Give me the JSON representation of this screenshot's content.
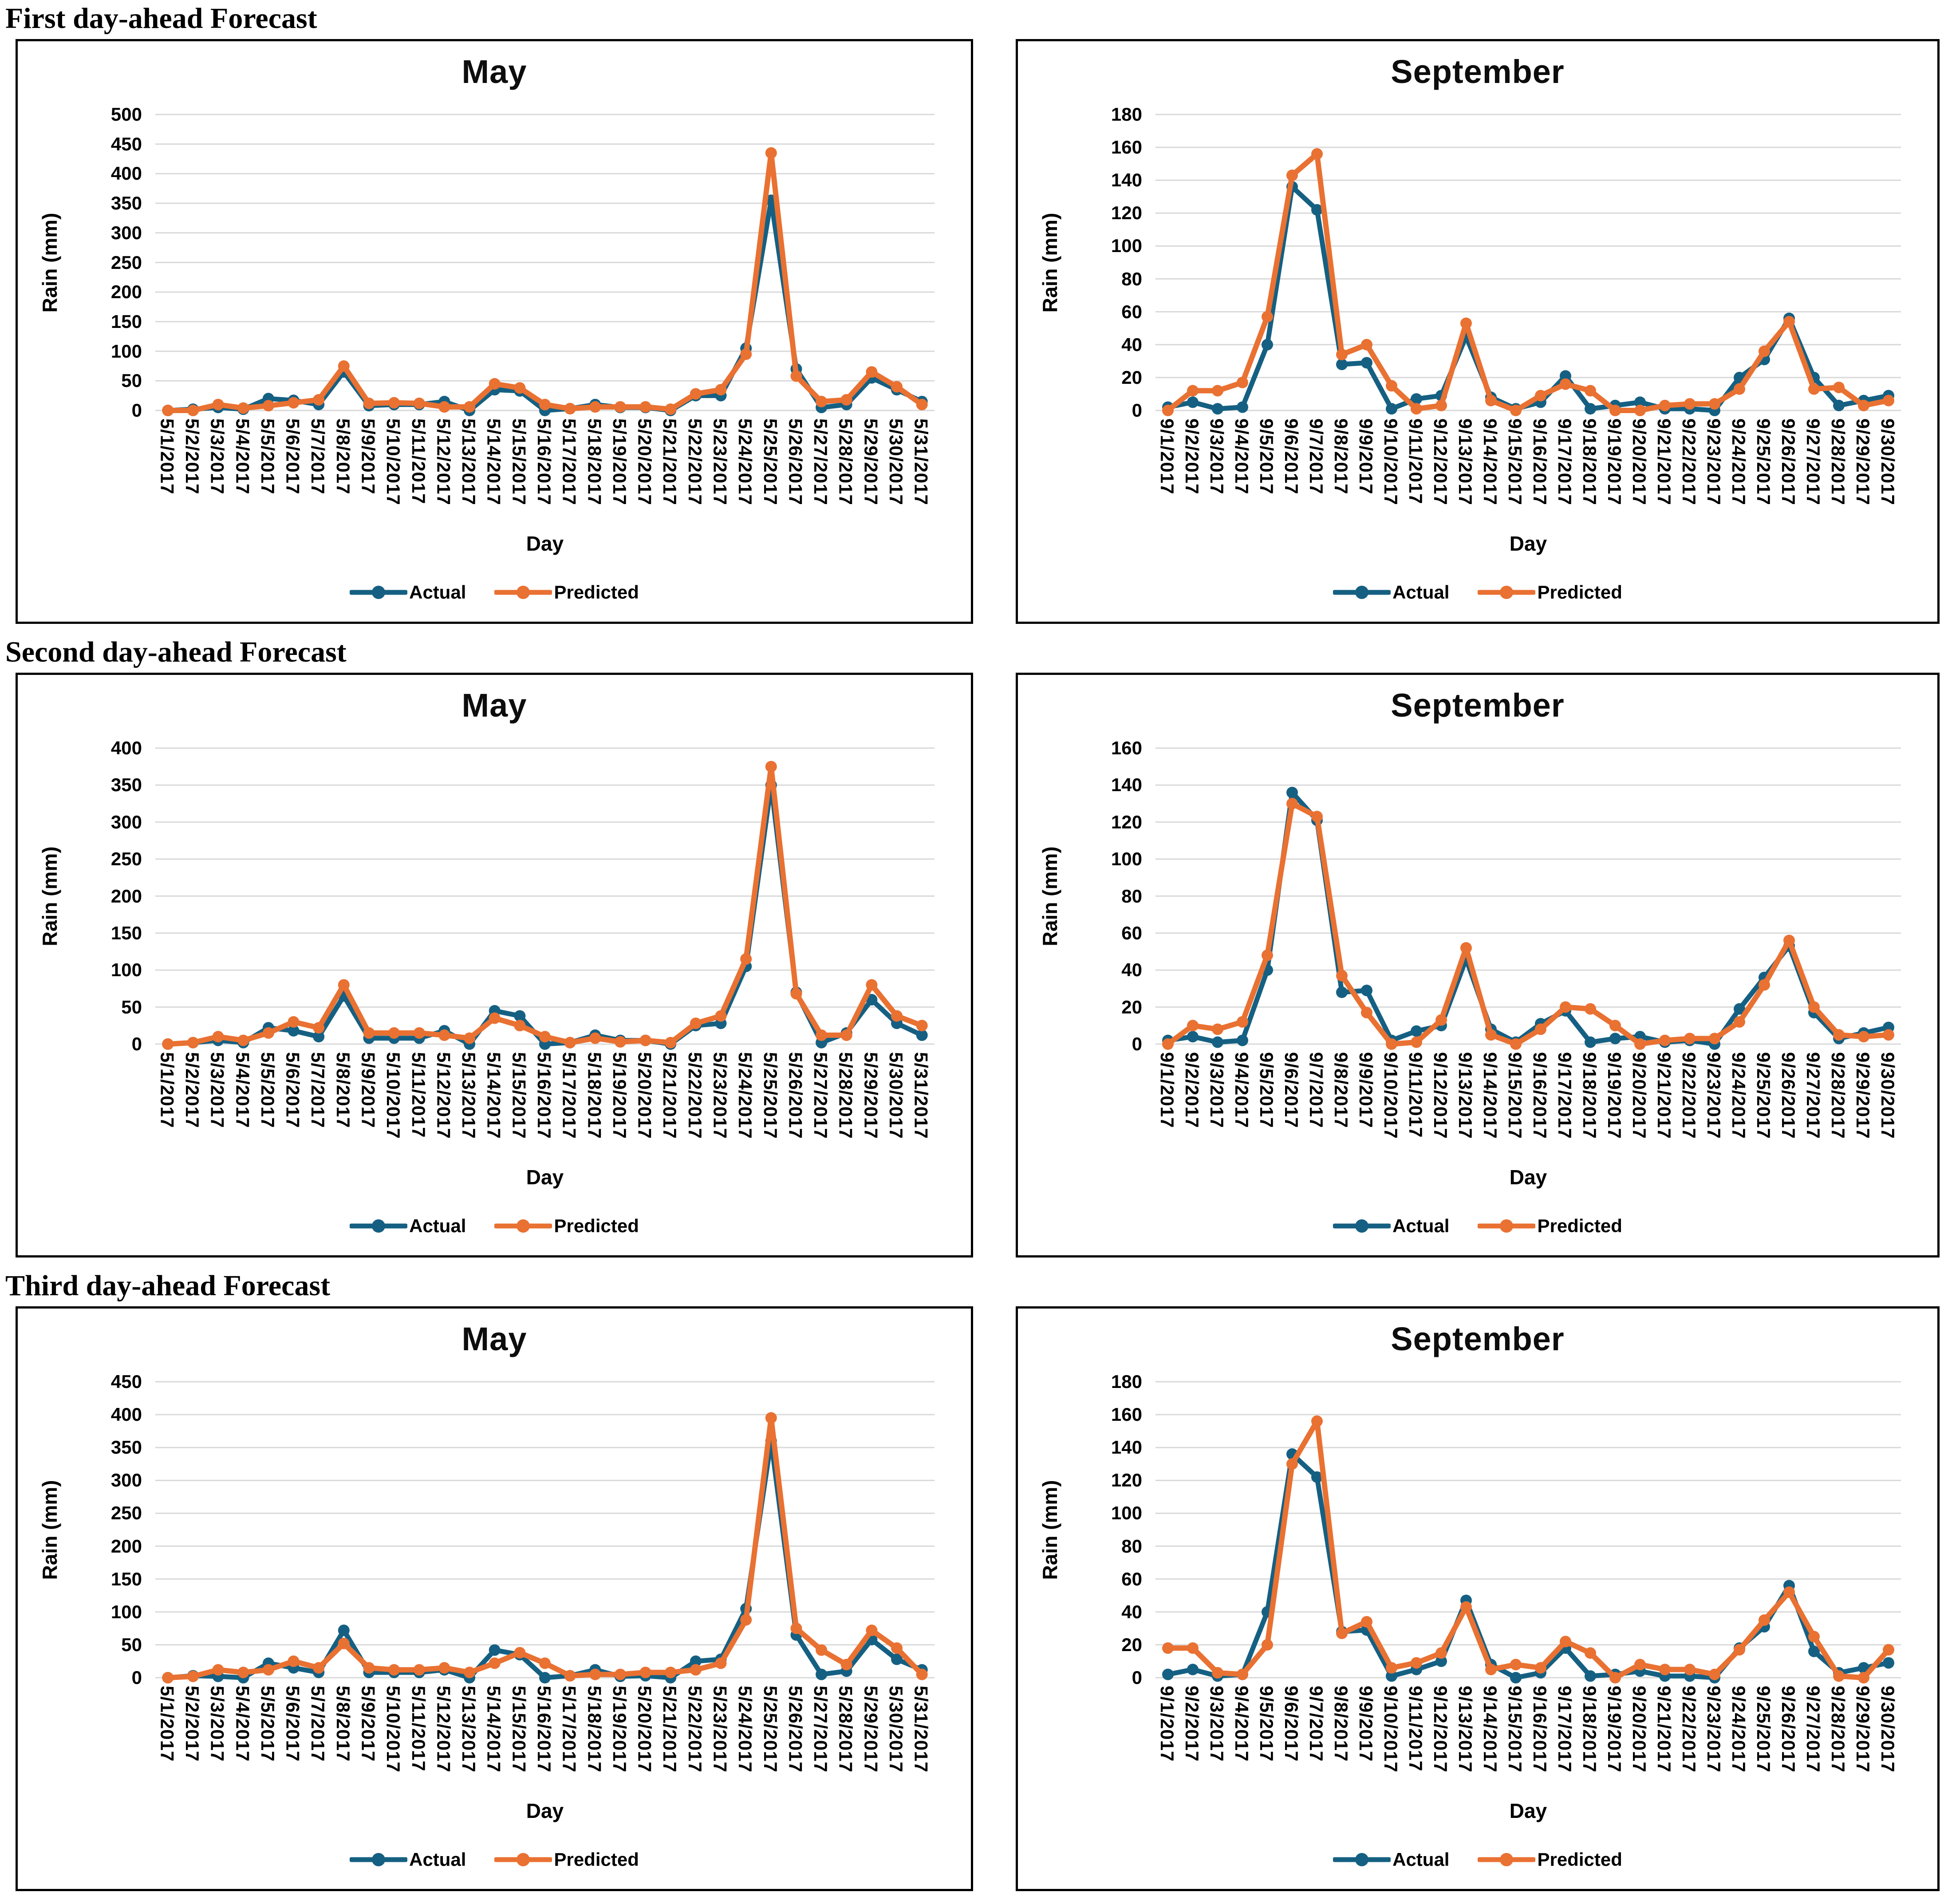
{
  "sections": [
    {
      "title": "First day-ahead Forecast"
    },
    {
      "title": "Second day-ahead Forecast"
    },
    {
      "title": "Third day-ahead Forecast"
    }
  ],
  "colors": {
    "actual": "#156082",
    "predicted": "#E97132",
    "grid": "#D9D9D9",
    "panel_border": "#000000"
  },
  "chart_data": [
    {
      "type": "line",
      "title": "May",
      "xlabel": "Day",
      "ylabel": "Rain (mm)",
      "ylim": [
        0,
        500
      ],
      "ystep": 50,
      "grid": true,
      "legend_position": "bottom",
      "categories": [
        "5/1/2017",
        "5/2/2017",
        "5/3/2017",
        "5/4/2017",
        "5/5/2017",
        "5/6/2017",
        "5/7/2017",
        "5/8/2017",
        "5/9/2017",
        "5/10/2017",
        "5/11/2017",
        "5/12/2017",
        "5/13/2017",
        "5/14/2017",
        "5/15/2017",
        "5/16/2017",
        "5/17/2017",
        "5/18/2017",
        "5/19/2017",
        "5/20/2017",
        "5/21/2017",
        "5/22/2017",
        "5/23/2017",
        "5/24/2017",
        "5/25/2017",
        "5/26/2017",
        "5/27/2017",
        "5/28/2017",
        "5/29/2017",
        "5/30/2017",
        "5/31/2017"
      ],
      "series": [
        {
          "name": "Actual",
          "color_key": "actual",
          "values": [
            0,
            2,
            5,
            2,
            20,
            17,
            10,
            65,
            8,
            10,
            10,
            15,
            0,
            35,
            33,
            0,
            3,
            10,
            5,
            5,
            0,
            25,
            25,
            105,
            355,
            70,
            5,
            10,
            55,
            35,
            15
          ]
        },
        {
          "name": "Predicted",
          "color_key": "predicted",
          "values": [
            0,
            0,
            10,
            4,
            8,
            13,
            18,
            75,
            12,
            13,
            12,
            6,
            6,
            45,
            38,
            10,
            3,
            6,
            6,
            6,
            2,
            28,
            35,
            95,
            435,
            58,
            15,
            18,
            65,
            40,
            10
          ]
        }
      ]
    },
    {
      "type": "line",
      "title": "September",
      "xlabel": "Day",
      "ylabel": "Rain (mm)",
      "ylim": [
        0,
        180
      ],
      "ystep": 20,
      "grid": true,
      "legend_position": "bottom",
      "categories": [
        "9/1/2017",
        "9/2/2017",
        "9/3/2017",
        "9/4/2017",
        "9/5/2017",
        "9/6/2017",
        "9/7/2017",
        "9/8/2017",
        "9/9/2017",
        "9/10/2017",
        "9/11/2017",
        "9/12/2017",
        "9/13/2017",
        "9/14/2017",
        "9/15/2017",
        "9/16/2017",
        "9/17/2017",
        "9/18/2017",
        "9/19/2017",
        "9/20/2017",
        "9/21/2017",
        "9/22/2017",
        "9/23/2017",
        "9/24/2017",
        "9/25/2017",
        "9/26/2017",
        "9/27/2017",
        "9/28/2017",
        "9/29/2017",
        "9/30/2017"
      ],
      "series": [
        {
          "name": "Actual",
          "color_key": "actual",
          "values": [
            2,
            5,
            1,
            2,
            40,
            136,
            122,
            28,
            29,
            1,
            7,
            9,
            45,
            8,
            1,
            5,
            21,
            1,
            3,
            5,
            1,
            1,
            0,
            20,
            31,
            56,
            20,
            3,
            6,
            9
          ]
        },
        {
          "name": "Predicted",
          "color_key": "predicted",
          "values": [
            0,
            12,
            12,
            17,
            57,
            143,
            156,
            34,
            40,
            15,
            1,
            3,
            53,
            6,
            0,
            9,
            16,
            12,
            0,
            0,
            3,
            4,
            4,
            13,
            36,
            54,
            13,
            14,
            3,
            6
          ]
        }
      ]
    },
    {
      "type": "line",
      "title": "May",
      "xlabel": "Day",
      "ylabel": "Rain (mm)",
      "ylim": [
        0,
        400
      ],
      "ystep": 50,
      "grid": true,
      "legend_position": "bottom",
      "categories": [
        "5/1/2017",
        "5/2/2017",
        "5/3/2017",
        "5/4/2017",
        "5/5/2017",
        "5/6/2017",
        "5/7/2017",
        "5/8/2017",
        "5/9/2017",
        "5/10/2017",
        "5/11/2017",
        "5/12/2017",
        "5/13/2017",
        "5/14/2017",
        "5/15/2017",
        "5/16/2017",
        "5/17/2017",
        "5/18/2017",
        "5/19/2017",
        "5/20/2017",
        "5/21/2017",
        "5/22/2017",
        "5/23/2017",
        "5/24/2017",
        "5/25/2017",
        "5/26/2017",
        "5/27/2017",
        "5/28/2017",
        "5/29/2017",
        "5/30/2017",
        "5/31/2017"
      ],
      "series": [
        {
          "name": "Actual",
          "color_key": "actual",
          "values": [
            0,
            2,
            5,
            2,
            22,
            18,
            10,
            65,
            8,
            8,
            8,
            18,
            0,
            45,
            38,
            0,
            2,
            12,
            5,
            5,
            0,
            25,
            28,
            105,
            350,
            70,
            2,
            15,
            60,
            28,
            12
          ]
        },
        {
          "name": "Predicted",
          "color_key": "predicted",
          "values": [
            0,
            2,
            10,
            5,
            15,
            30,
            22,
            80,
            15,
            15,
            15,
            12,
            8,
            35,
            25,
            10,
            2,
            8,
            3,
            5,
            2,
            28,
            38,
            115,
            375,
            68,
            12,
            12,
            80,
            38,
            25
          ]
        }
      ]
    },
    {
      "type": "line",
      "title": "September",
      "xlabel": "Day",
      "ylabel": "Rain (mm)",
      "ylim": [
        0,
        160
      ],
      "ystep": 20,
      "grid": true,
      "legend_position": "bottom",
      "categories": [
        "9/1/2017",
        "9/2/2017",
        "9/3/2017",
        "9/4/2017",
        "9/5/2017",
        "9/6/2017",
        "9/7/2017",
        "9/8/2017",
        "9/9/2017",
        "9/10/2017",
        "9/11/2017",
        "9/12/2017",
        "9/13/2017",
        "9/14/2017",
        "9/15/2017",
        "9/16/2017",
        "9/17/2017",
        "9/18/2017",
        "9/19/2017",
        "9/20/2017",
        "9/21/2017",
        "9/22/2017",
        "9/23/2017",
        "9/24/2017",
        "9/25/2017",
        "9/26/2017",
        "9/27/2017",
        "9/28/2017",
        "9/29/2017",
        "9/30/2017"
      ],
      "series": [
        {
          "name": "Actual",
          "color_key": "actual",
          "values": [
            2,
            4,
            1,
            2,
            40,
            136,
            121,
            28,
            29,
            2,
            7,
            10,
            46,
            8,
            1,
            11,
            18,
            1,
            3,
            4,
            1,
            2,
            0,
            19,
            36,
            53,
            17,
            3,
            6,
            9
          ]
        },
        {
          "name": "Predicted",
          "color_key": "predicted",
          "values": [
            0,
            10,
            8,
            12,
            48,
            130,
            123,
            37,
            17,
            0,
            1,
            13,
            52,
            5,
            0,
            8,
            20,
            19,
            10,
            0,
            2,
            3,
            3,
            12,
            32,
            56,
            20,
            5,
            4,
            5
          ]
        }
      ]
    },
    {
      "type": "line",
      "title": "May",
      "xlabel": "Day",
      "ylabel": "Rain (mm)",
      "ylim": [
        0,
        450
      ],
      "ystep": 50,
      "grid": true,
      "legend_position": "bottom",
      "categories": [
        "5/1/2017",
        "5/2/2017",
        "5/3/2017",
        "5/4/2017",
        "5/5/2017",
        "5/6/2017",
        "5/7/2017",
        "5/8/2017",
        "5/9/2017",
        "5/10/2017",
        "5/11/2017",
        "5/12/2017",
        "5/13/2017",
        "5/14/2017",
        "5/15/2017",
        "5/16/2017",
        "5/17/2017",
        "5/18/2017",
        "5/19/2017",
        "5/20/2017",
        "5/21/2017",
        "5/22/2017",
        "5/23/2017",
        "5/24/2017",
        "5/25/2017",
        "5/26/2017",
        "5/27/2017",
        "5/28/2017",
        "5/29/2017",
        "5/30/2017",
        "5/31/2017"
      ],
      "series": [
        {
          "name": "Actual",
          "color_key": "actual",
          "values": [
            0,
            3,
            2,
            0,
            22,
            15,
            8,
            72,
            8,
            8,
            8,
            12,
            0,
            42,
            35,
            0,
            3,
            12,
            2,
            3,
            0,
            25,
            28,
            105,
            360,
            65,
            5,
            10,
            58,
            28,
            12
          ]
        },
        {
          "name": "Predicted",
          "color_key": "predicted",
          "values": [
            0,
            2,
            12,
            8,
            12,
            25,
            15,
            52,
            15,
            12,
            12,
            15,
            8,
            22,
            38,
            22,
            3,
            5,
            5,
            8,
            8,
            12,
            22,
            88,
            395,
            75,
            42,
            20,
            72,
            45,
            5
          ]
        }
      ]
    },
    {
      "type": "line",
      "title": "September",
      "xlabel": "Day",
      "ylabel": "Rain (mm)",
      "ylim": [
        0,
        180
      ],
      "ystep": 20,
      "grid": true,
      "legend_position": "bottom",
      "categories": [
        "9/1/2017",
        "9/2/2017",
        "9/3/2017",
        "9/4/2017",
        "9/5/2017",
        "9/6/2017",
        "9/7/2017",
        "9/8/2017",
        "9/9/2017",
        "9/10/2017",
        "9/11/2017",
        "9/12/2017",
        "9/13/2017",
        "9/14/2017",
        "9/15/2017",
        "9/16/2017",
        "9/17/2017",
        "9/18/2017",
        "9/19/2017",
        "9/20/2017",
        "9/21/2017",
        "9/22/2017",
        "9/23/2017",
        "9/24/2017",
        "9/25/2017",
        "9/26/2017",
        "9/27/2017",
        "9/28/2017",
        "9/29/2017",
        "9/30/2017"
      ],
      "series": [
        {
          "name": "Actual",
          "color_key": "actual",
          "values": [
            2,
            5,
            1,
            2,
            40,
            136,
            122,
            28,
            29,
            1,
            5,
            10,
            47,
            8,
            0,
            3,
            18,
            1,
            2,
            4,
            1,
            1,
            0,
            18,
            31,
            56,
            16,
            3,
            6,
            9
          ]
        },
        {
          "name": "Predicted",
          "color_key": "predicted",
          "values": [
            18,
            18,
            3,
            2,
            20,
            130,
            156,
            27,
            34,
            6,
            9,
            15,
            43,
            5,
            8,
            6,
            22,
            15,
            0,
            8,
            5,
            5,
            2,
            17,
            35,
            52,
            25,
            1,
            0,
            17
          ]
        }
      ]
    }
  ]
}
